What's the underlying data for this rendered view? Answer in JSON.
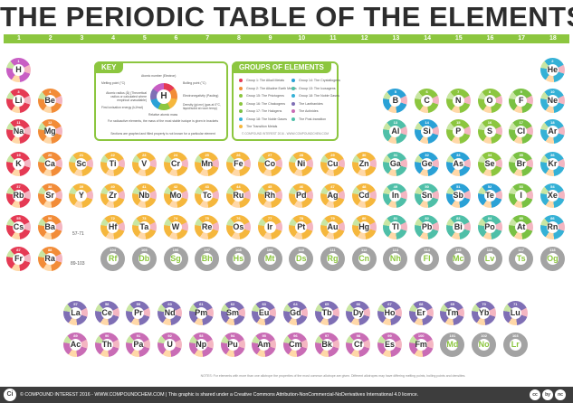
{
  "title": "THE PERIODIC TABLE OF THE ELEMENTS",
  "groups": [
    "1",
    "2",
    "3",
    "4",
    "5",
    "6",
    "7",
    "8",
    "9",
    "10",
    "11",
    "12",
    "13",
    "14",
    "15",
    "16",
    "17",
    "18"
  ],
  "colors": {
    "alkali": "#e53a54",
    "alkaline_earth": "#f28c38",
    "transition": "#f5b73d",
    "post_transition": "#4fbfa8",
    "metalloid": "#2aa1d6",
    "nonmetal": "#8cc63f",
    "halogen": "#7ac143",
    "noble_gas": "#35b1d6",
    "lanthanide": "#7f6fb5",
    "actinide": "#c96cb5",
    "unknown": "#a3a3a3",
    "hydrogen": "#c85ec4",
    "accent": "#8cc63f"
  },
  "key": {
    "title": "KEY",
    "labels": [
      "Atomic number (Electron)",
      "Melting point (°C)",
      "Boiling point (°C)",
      "Atomic radius (Å) (Theoretical radius or calculated where empirical unavailable)",
      "Electronegativity (Pauling)",
      "First ionisation energy (kJ/mol)",
      "Density (g/cm³) (gas at 0°C, liquid/solid at room temp)",
      "Relative atomic mass",
      "For radioactive elements, the mass of the most stable isotope is given in brackets",
      "Sections are graphed and filled property is not known for a particular element"
    ],
    "sample_symbol": "H",
    "sample_name": "HYDROGEN"
  },
  "groups_panel": {
    "title": "GROUPS OF ELEMENTS",
    "left": [
      "Group 1: The Alkali Metals",
      "Group 2: The Alkaline Earth Metals",
      "Group 15: The Pnictogens",
      "Group 16: The Chalcogens",
      "Group 17: The Halogens",
      "Group 18: The Noble Gases",
      "The Transition Metals"
    ],
    "right": [
      "Group 14: The Crystallogens",
      "Group 13: The Icosagens",
      "Group 18: The Noble Gases",
      "The Lanthanides",
      "The Actinides",
      "The Post-transition"
    ],
    "credit": "© COMPOUND INTEREST 2016 - WWW.COMPOUNDCHEM.COM"
  },
  "range_labels": [
    "57-71",
    "89-103"
  ],
  "notes": "NOTES: For elements with more than one allotrope the properties of the most common allotrope are given. Different allotropes may have differing melting points, boiling points and densities.",
  "footer": {
    "logo": "Ci",
    "text": "© COMPOUND INTEREST 2016 - WWW.COMPOUNDCHEM.COM | This graphic is shared under a Creative Commons Attribution-NonCommercial-NoDerivatives International 4.0 licence.",
    "badges": [
      "cc",
      "by",
      "nc"
    ]
  },
  "elements": [
    {
      "s": "H",
      "n": "1",
      "g": "hydrogen",
      "r": 0,
      "c": 0
    },
    {
      "s": "He",
      "n": "2",
      "g": "noble_gas",
      "r": 0,
      "c": 17
    },
    {
      "s": "Li",
      "n": "3",
      "g": "alkali",
      "r": 1,
      "c": 0
    },
    {
      "s": "Be",
      "n": "4",
      "g": "alkaline_earth",
      "r": 1,
      "c": 1
    },
    {
      "s": "B",
      "n": "5",
      "g": "metalloid",
      "r": 1,
      "c": 12
    },
    {
      "s": "C",
      "n": "6",
      "g": "nonmetal",
      "r": 1,
      "c": 13
    },
    {
      "s": "N",
      "n": "7",
      "g": "nonmetal",
      "r": 1,
      "c": 14
    },
    {
      "s": "O",
      "n": "8",
      "g": "nonmetal",
      "r": 1,
      "c": 15
    },
    {
      "s": "F",
      "n": "9",
      "g": "halogen",
      "r": 1,
      "c": 16
    },
    {
      "s": "Ne",
      "n": "10",
      "g": "noble_gas",
      "r": 1,
      "c": 17
    },
    {
      "s": "Na",
      "n": "11",
      "g": "alkali",
      "r": 2,
      "c": 0
    },
    {
      "s": "Mg",
      "n": "12",
      "g": "alkaline_earth",
      "r": 2,
      "c": 1
    },
    {
      "s": "Al",
      "n": "13",
      "g": "post_transition",
      "r": 2,
      "c": 12
    },
    {
      "s": "Si",
      "n": "14",
      "g": "metalloid",
      "r": 2,
      "c": 13
    },
    {
      "s": "P",
      "n": "15",
      "g": "nonmetal",
      "r": 2,
      "c": 14
    },
    {
      "s": "S",
      "n": "16",
      "g": "nonmetal",
      "r": 2,
      "c": 15
    },
    {
      "s": "Cl",
      "n": "17",
      "g": "halogen",
      "r": 2,
      "c": 16
    },
    {
      "s": "Ar",
      "n": "18",
      "g": "noble_gas",
      "r": 2,
      "c": 17
    },
    {
      "s": "K",
      "n": "19",
      "g": "alkali",
      "r": 3,
      "c": 0
    },
    {
      "s": "Ca",
      "n": "20",
      "g": "alkaline_earth",
      "r": 3,
      "c": 1
    },
    {
      "s": "Sc",
      "n": "21",
      "g": "transition",
      "r": 3,
      "c": 2
    },
    {
      "s": "Ti",
      "n": "22",
      "g": "transition",
      "r": 3,
      "c": 3
    },
    {
      "s": "V",
      "n": "23",
      "g": "transition",
      "r": 3,
      "c": 4
    },
    {
      "s": "Cr",
      "n": "24",
      "g": "transition",
      "r": 3,
      "c": 5
    },
    {
      "s": "Mn",
      "n": "25",
      "g": "transition",
      "r": 3,
      "c": 6
    },
    {
      "s": "Fe",
      "n": "26",
      "g": "transition",
      "r": 3,
      "c": 7
    },
    {
      "s": "Co",
      "n": "27",
      "g": "transition",
      "r": 3,
      "c": 8
    },
    {
      "s": "Ni",
      "n": "28",
      "g": "transition",
      "r": 3,
      "c": 9
    },
    {
      "s": "Cu",
      "n": "29",
      "g": "transition",
      "r": 3,
      "c": 10
    },
    {
      "s": "Zn",
      "n": "30",
      "g": "transition",
      "r": 3,
      "c": 11
    },
    {
      "s": "Ga",
      "n": "31",
      "g": "post_transition",
      "r": 3,
      "c": 12
    },
    {
      "s": "Ge",
      "n": "32",
      "g": "metalloid",
      "r": 3,
      "c": 13
    },
    {
      "s": "As",
      "n": "33",
      "g": "metalloid",
      "r": 3,
      "c": 14
    },
    {
      "s": "Se",
      "n": "34",
      "g": "nonmetal",
      "r": 3,
      "c": 15
    },
    {
      "s": "Br",
      "n": "35",
      "g": "halogen",
      "r": 3,
      "c": 16
    },
    {
      "s": "Kr",
      "n": "36",
      "g": "noble_gas",
      "r": 3,
      "c": 17
    },
    {
      "s": "Rb",
      "n": "37",
      "g": "alkali",
      "r": 4,
      "c": 0
    },
    {
      "s": "Sr",
      "n": "38",
      "g": "alkaline_earth",
      "r": 4,
      "c": 1
    },
    {
      "s": "Y",
      "n": "39",
      "g": "transition",
      "r": 4,
      "c": 2
    },
    {
      "s": "Zr",
      "n": "40",
      "g": "transition",
      "r": 4,
      "c": 3
    },
    {
      "s": "Nb",
      "n": "41",
      "g": "transition",
      "r": 4,
      "c": 4
    },
    {
      "s": "Mo",
      "n": "42",
      "g": "transition",
      "r": 4,
      "c": 5
    },
    {
      "s": "Tc",
      "n": "43",
      "g": "transition",
      "r": 4,
      "c": 6
    },
    {
      "s": "Ru",
      "n": "44",
      "g": "transition",
      "r": 4,
      "c": 7
    },
    {
      "s": "Rh",
      "n": "45",
      "g": "transition",
      "r": 4,
      "c": 8
    },
    {
      "s": "Pd",
      "n": "46",
      "g": "transition",
      "r": 4,
      "c": 9
    },
    {
      "s": "Ag",
      "n": "47",
      "g": "transition",
      "r": 4,
      "c": 10
    },
    {
      "s": "Cd",
      "n": "48",
      "g": "transition",
      "r": 4,
      "c": 11
    },
    {
      "s": "In",
      "n": "49",
      "g": "post_transition",
      "r": 4,
      "c": 12
    },
    {
      "s": "Sn",
      "n": "50",
      "g": "post_transition",
      "r": 4,
      "c": 13
    },
    {
      "s": "Sb",
      "n": "51",
      "g": "metalloid",
      "r": 4,
      "c": 14
    },
    {
      "s": "Te",
      "n": "52",
      "g": "metalloid",
      "r": 4,
      "c": 15
    },
    {
      "s": "I",
      "n": "53",
      "g": "halogen",
      "r": 4,
      "c": 16
    },
    {
      "s": "Xe",
      "n": "54",
      "g": "noble_gas",
      "r": 4,
      "c": 17
    },
    {
      "s": "Cs",
      "n": "55",
      "g": "alkali",
      "r": 5,
      "c": 0
    },
    {
      "s": "Ba",
      "n": "56",
      "g": "alkaline_earth",
      "r": 5,
      "c": 1
    },
    {
      "s": "Hf",
      "n": "72",
      "g": "transition",
      "r": 5,
      "c": 3
    },
    {
      "s": "Ta",
      "n": "73",
      "g": "transition",
      "r": 5,
      "c": 4
    },
    {
      "s": "W",
      "n": "74",
      "g": "transition",
      "r": 5,
      "c": 5
    },
    {
      "s": "Re",
      "n": "75",
      "g": "transition",
      "r": 5,
      "c": 6
    },
    {
      "s": "Os",
      "n": "76",
      "g": "transition",
      "r": 5,
      "c": 7
    },
    {
      "s": "Ir",
      "n": "77",
      "g": "transition",
      "r": 5,
      "c": 8
    },
    {
      "s": "Pt",
      "n": "78",
      "g": "transition",
      "r": 5,
      "c": 9
    },
    {
      "s": "Au",
      "n": "79",
      "g": "transition",
      "r": 5,
      "c": 10
    },
    {
      "s": "Hg",
      "n": "80",
      "g": "transition",
      "r": 5,
      "c": 11
    },
    {
      "s": "Tl",
      "n": "81",
      "g": "post_transition",
      "r": 5,
      "c": 12
    },
    {
      "s": "Pb",
      "n": "82",
      "g": "post_transition",
      "r": 5,
      "c": 13
    },
    {
      "s": "Bi",
      "n": "83",
      "g": "post_transition",
      "r": 5,
      "c": 14
    },
    {
      "s": "Po",
      "n": "84",
      "g": "post_transition",
      "r": 5,
      "c": 15
    },
    {
      "s": "At",
      "n": "85",
      "g": "halogen",
      "r": 5,
      "c": 16
    },
    {
      "s": "Rn",
      "n": "86",
      "g": "noble_gas",
      "r": 5,
      "c": 17
    },
    {
      "s": "Fr",
      "n": "87",
      "g": "alkali",
      "r": 6,
      "c": 0
    },
    {
      "s": "Ra",
      "n": "88",
      "g": "alkaline_earth",
      "r": 6,
      "c": 1
    },
    {
      "s": "Rf",
      "n": "104",
      "g": "unknown",
      "r": 6,
      "c": 3
    },
    {
      "s": "Db",
      "n": "105",
      "g": "unknown",
      "r": 6,
      "c": 4
    },
    {
      "s": "Sg",
      "n": "106",
      "g": "unknown",
      "r": 6,
      "c": 5
    },
    {
      "s": "Bh",
      "n": "107",
      "g": "unknown",
      "r": 6,
      "c": 6
    },
    {
      "s": "Hs",
      "n": "108",
      "g": "unknown",
      "r": 6,
      "c": 7
    },
    {
      "s": "Mt",
      "n": "109",
      "g": "unknown",
      "r": 6,
      "c": 8
    },
    {
      "s": "Ds",
      "n": "110",
      "g": "unknown",
      "r": 6,
      "c": 9
    },
    {
      "s": "Rg",
      "n": "111",
      "g": "unknown",
      "r": 6,
      "c": 10
    },
    {
      "s": "Cn",
      "n": "112",
      "g": "unknown",
      "r": 6,
      "c": 11
    },
    {
      "s": "Nh",
      "n": "113",
      "g": "unknown",
      "r": 6,
      "c": 12
    },
    {
      "s": "Fl",
      "n": "114",
      "g": "unknown",
      "r": 6,
      "c": 13
    },
    {
      "s": "Mc",
      "n": "115",
      "g": "unknown",
      "r": 6,
      "c": 14
    },
    {
      "s": "Lv",
      "n": "116",
      "g": "unknown",
      "r": 6,
      "c": 15
    },
    {
      "s": "Ts",
      "n": "117",
      "g": "unknown",
      "r": 6,
      "c": 16
    },
    {
      "s": "Og",
      "n": "118",
      "g": "unknown",
      "r": 6,
      "c": 17
    },
    {
      "s": "La",
      "n": "57",
      "g": "lanthanide",
      "r": 7,
      "c": 0
    },
    {
      "s": "Ce",
      "n": "58",
      "g": "lanthanide",
      "r": 7,
      "c": 1
    },
    {
      "s": "Pr",
      "n": "59",
      "g": "lanthanide",
      "r": 7,
      "c": 2
    },
    {
      "s": "Nd",
      "n": "60",
      "g": "lanthanide",
      "r": 7,
      "c": 3
    },
    {
      "s": "Pm",
      "n": "61",
      "g": "lanthanide",
      "r": 7,
      "c": 4
    },
    {
      "s": "Sm",
      "n": "62",
      "g": "lanthanide",
      "r": 7,
      "c": 5
    },
    {
      "s": "Eu",
      "n": "63",
      "g": "lanthanide",
      "r": 7,
      "c": 6
    },
    {
      "s": "Gd",
      "n": "64",
      "g": "lanthanide",
      "r": 7,
      "c": 7
    },
    {
      "s": "Tb",
      "n": "65",
      "g": "lanthanide",
      "r": 7,
      "c": 8
    },
    {
      "s": "Dy",
      "n": "66",
      "g": "lanthanide",
      "r": 7,
      "c": 9
    },
    {
      "s": "Ho",
      "n": "67",
      "g": "lanthanide",
      "r": 7,
      "c": 10
    },
    {
      "s": "Er",
      "n": "68",
      "g": "lanthanide",
      "r": 7,
      "c": 11
    },
    {
      "s": "Tm",
      "n": "69",
      "g": "lanthanide",
      "r": 7,
      "c": 12
    },
    {
      "s": "Yb",
      "n": "70",
      "g": "lanthanide",
      "r": 7,
      "c": 13
    },
    {
      "s": "Lu",
      "n": "71",
      "g": "lanthanide",
      "r": 7,
      "c": 14
    },
    {
      "s": "Ac",
      "n": "89",
      "g": "actinide",
      "r": 8,
      "c": 0
    },
    {
      "s": "Th",
      "n": "90",
      "g": "actinide",
      "r": 8,
      "c": 1
    },
    {
      "s": "Pa",
      "n": "91",
      "g": "actinide",
      "r": 8,
      "c": 2
    },
    {
      "s": "U",
      "n": "92",
      "g": "actinide",
      "r": 8,
      "c": 3
    },
    {
      "s": "Np",
      "n": "93",
      "g": "actinide",
      "r": 8,
      "c": 4
    },
    {
      "s": "Pu",
      "n": "94",
      "g": "actinide",
      "r": 8,
      "c": 5
    },
    {
      "s": "Am",
      "n": "95",
      "g": "actinide",
      "r": 8,
      "c": 6
    },
    {
      "s": "Cm",
      "n": "96",
      "g": "actinide",
      "r": 8,
      "c": 7
    },
    {
      "s": "Bk",
      "n": "97",
      "g": "actinide",
      "r": 8,
      "c": 8
    },
    {
      "s": "Cf",
      "n": "98",
      "g": "actinide",
      "r": 8,
      "c": 9
    },
    {
      "s": "Es",
      "n": "99",
      "g": "actinide",
      "r": 8,
      "c": 10
    },
    {
      "s": "Fm",
      "n": "100",
      "g": "actinide",
      "r": 8,
      "c": 11
    },
    {
      "s": "Md",
      "n": "101",
      "g": "unknown",
      "r": 8,
      "c": 12
    },
    {
      "s": "No",
      "n": "102",
      "g": "unknown",
      "r": 8,
      "c": 13
    },
    {
      "s": "Lr",
      "n": "103",
      "g": "unknown",
      "r": 8,
      "c": 14
    }
  ]
}
